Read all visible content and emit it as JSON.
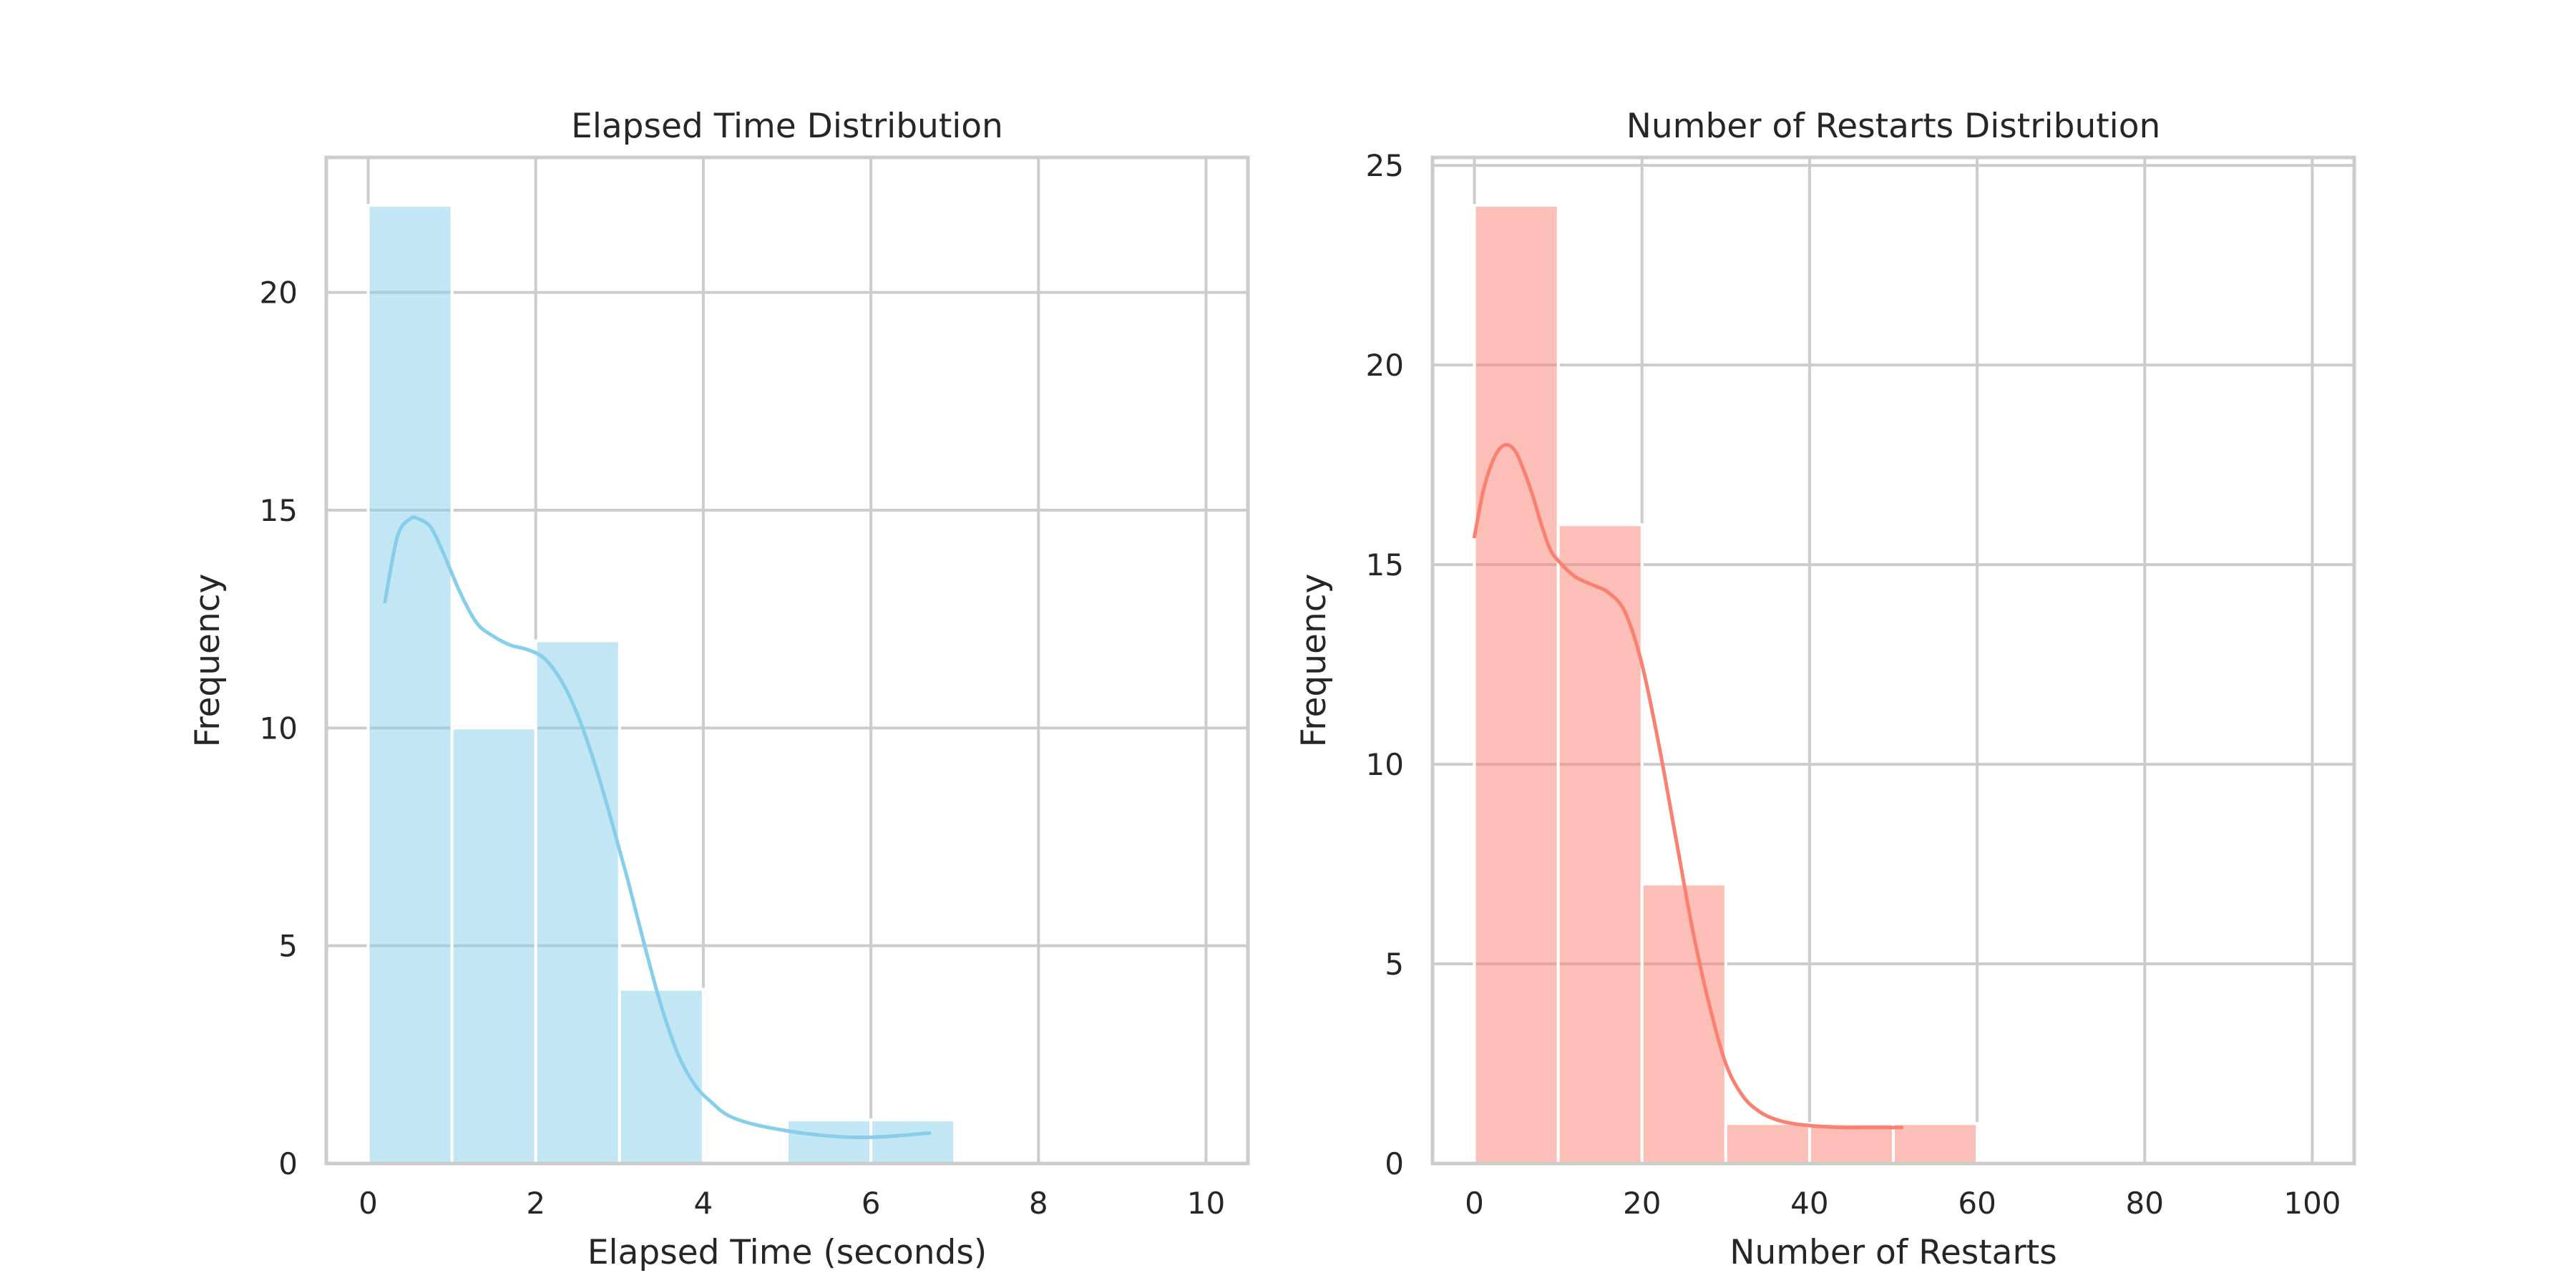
{
  "chart_data": [
    {
      "type": "bar",
      "title": "Elapsed Time Distribution",
      "xlabel": "Elapsed Time (seconds)",
      "ylabel": "Frequency",
      "xlim": [
        -0.5,
        10.5
      ],
      "ylim": [
        0,
        23.1
      ],
      "xticks": [
        0,
        2,
        4,
        6,
        8,
        10
      ],
      "yticks": [
        0,
        5,
        10,
        15,
        20
      ],
      "grid": true,
      "bar_color": "#87ceeb",
      "bar_opacity": 0.5,
      "kde_color": "#87ceeb",
      "bins": [
        {
          "x0": 0,
          "x1": 1,
          "count": 22
        },
        {
          "x0": 1,
          "x1": 2,
          "count": 10
        },
        {
          "x0": 2,
          "x1": 3,
          "count": 12
        },
        {
          "x0": 3,
          "x1": 4,
          "count": 4
        },
        {
          "x0": 4,
          "x1": 5,
          "count": 0
        },
        {
          "x0": 5,
          "x1": 6,
          "count": 1
        },
        {
          "x0": 6,
          "x1": 7,
          "count": 1
        }
      ],
      "kde": {
        "x": [
          0.2,
          0.35,
          0.5,
          0.6,
          0.75,
          0.9,
          1.1,
          1.3,
          1.5,
          1.7,
          1.9,
          2.1,
          2.3,
          2.5,
          2.7,
          2.9,
          3.1,
          3.3,
          3.5,
          3.7,
          3.9,
          4.1,
          4.3,
          4.6,
          5.0,
          5.4,
          5.8,
          6.2,
          6.7
        ],
        "y": [
          12.9,
          14.4,
          14.8,
          14.8,
          14.6,
          14.0,
          13.1,
          12.4,
          12.1,
          11.9,
          11.8,
          11.6,
          11.1,
          10.3,
          9.2,
          7.9,
          6.5,
          5.0,
          3.6,
          2.5,
          1.8,
          1.4,
          1.1,
          0.9,
          0.75,
          0.65,
          0.6,
          0.62,
          0.7
        ]
      }
    },
    {
      "type": "bar",
      "title": "Number of Restarts Distribution",
      "xlabel": "Number of Restarts",
      "ylabel": "Frequency",
      "xlim": [
        -5,
        105
      ],
      "ylim": [
        0,
        25.2
      ],
      "xticks": [
        0,
        20,
        40,
        60,
        80,
        100
      ],
      "yticks": [
        0,
        5,
        10,
        15,
        20,
        25
      ],
      "grid": true,
      "bar_color": "#fa8072",
      "bar_opacity": 0.5,
      "kde_color": "#fa8072",
      "bins": [
        {
          "x0": 0,
          "x1": 10,
          "count": 24
        },
        {
          "x0": 10,
          "x1": 20,
          "count": 16
        },
        {
          "x0": 20,
          "x1": 30,
          "count": 7
        },
        {
          "x0": 30,
          "x1": 40,
          "count": 1
        },
        {
          "x0": 40,
          "x1": 50,
          "count": 1
        },
        {
          "x0": 50,
          "x1": 60,
          "count": 1
        }
      ],
      "kde": {
        "x": [
          0,
          1,
          2,
          3,
          4,
          5,
          6,
          7,
          8,
          9,
          10,
          12,
          14,
          16,
          18,
          20,
          22,
          24,
          26,
          28,
          30,
          32,
          34,
          36,
          38,
          40,
          42,
          44,
          46,
          48,
          51
        ],
        "y": [
          15.7,
          16.8,
          17.5,
          17.9,
          18.0,
          17.8,
          17.3,
          16.7,
          16.0,
          15.4,
          15.1,
          14.7,
          14.5,
          14.3,
          13.8,
          12.5,
          10.5,
          8.2,
          5.9,
          4.0,
          2.5,
          1.7,
          1.3,
          1.1,
          1.0,
          0.95,
          0.92,
          0.9,
          0.9,
          0.9,
          0.9
        ]
      }
    }
  ]
}
